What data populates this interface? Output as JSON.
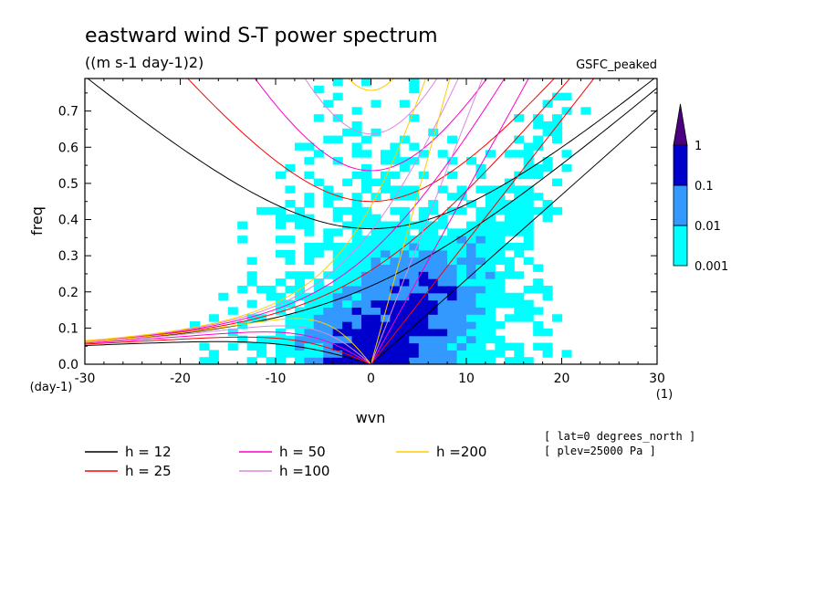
{
  "chart_data": {
    "type": "heatmap",
    "title": "eastward wind S-T power spectrum",
    "subtitle": "((m s-1 day-1)2)",
    "model_label": "GSFC_peaked",
    "xlabel": "wvn",
    "ylabel": "freq",
    "x_unit": "(1)",
    "y_unit": "(day-1)",
    "xlim": [
      -30,
      30
    ],
    "ylim": [
      0,
      0.79
    ],
    "x_ticks": [
      "-30",
      "-20",
      "-10",
      "0",
      "10",
      "20",
      "30"
    ],
    "y_ticks": [
      "0.0",
      "0.1",
      "0.2",
      "0.3",
      "0.4",
      "0.5",
      "0.6",
      "0.7"
    ],
    "colorbar": {
      "levels": [
        "0.001",
        "0.01",
        "0.1",
        "1"
      ],
      "colors": [
        "#00ffff",
        "#3399ff",
        "#0000cc",
        "#4b0082"
      ]
    },
    "dispersion_curves": [
      {
        "name": "h = 12",
        "h": 12,
        "color": "#000000"
      },
      {
        "name": "h = 25",
        "h": 25,
        "color": "#ff0000"
      },
      {
        "name": "h = 50",
        "h": 50,
        "color": "#ff00cc"
      },
      {
        "name": "h =100",
        "h": 100,
        "color": "#dd88dd"
      },
      {
        "name": "h =200",
        "h": 200,
        "color": "#ffcc00"
      }
    ],
    "notes": [
      "[ lat=0 degrees_north ]",
      "[ plev=25000 Pa ]"
    ],
    "grid": false
  }
}
